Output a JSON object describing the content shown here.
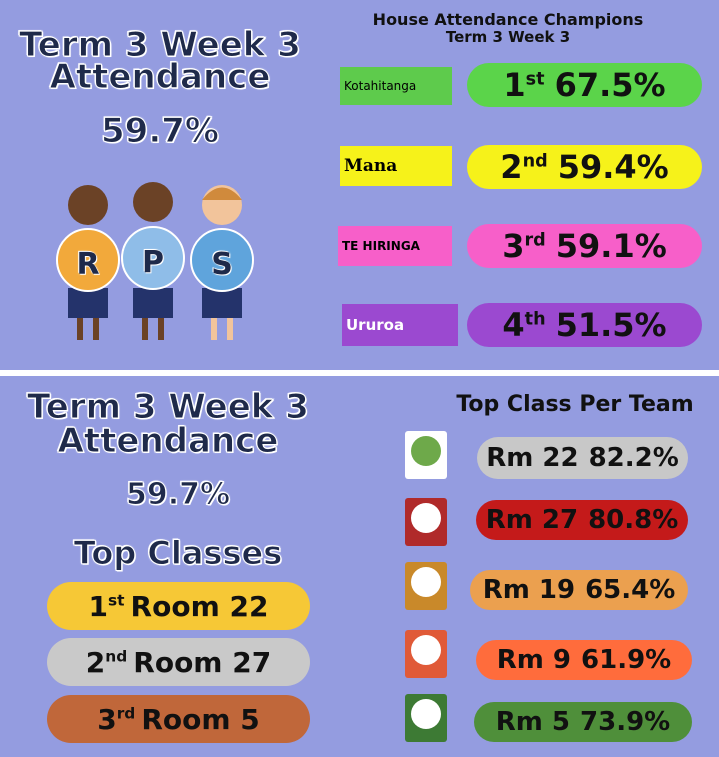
{
  "top": {
    "title_line1": "Term 3 Week 3",
    "title_line2": "Attendance",
    "overall": "59.7%",
    "letters": [
      "R",
      "P",
      "S"
    ],
    "champions_title": "House Attendance Champions",
    "champions_subtitle": "Term 3 Week 3",
    "houses": [
      {
        "name": "Kotahitanga",
        "ordinal": "1",
        "suffix": "st",
        "value": "67.5%"
      },
      {
        "name": "Mana",
        "ordinal": "2",
        "suffix": "nd",
        "value": "59.4%"
      },
      {
        "name": "TE HIRINGA",
        "ordinal": "3",
        "suffix": "rd",
        "value": "59.1%"
      },
      {
        "name": "Ururoa",
        "ordinal": "4",
        "suffix": "th",
        "value": "51.5%"
      }
    ]
  },
  "bottom": {
    "title_line1": "Term 3 Week 3",
    "title_line2": "Attendance",
    "overall": "59.7%",
    "top_classes_title": "Top Classes",
    "top_classes": [
      {
        "ordinal": "1",
        "suffix": "st",
        "room": "Room 22"
      },
      {
        "ordinal": "2",
        "suffix": "nd",
        "room": "Room 27"
      },
      {
        "ordinal": "3",
        "suffix": "rd",
        "room": "Room 5"
      }
    ],
    "team_title": "Top Class Per Team",
    "teams": [
      {
        "room": "Rm 22",
        "value": "82.2%"
      },
      {
        "room": "Rm 27",
        "value": "80.8%"
      },
      {
        "room": "Rm 19",
        "value": "65.4%"
      },
      {
        "room": "Rm 9",
        "value": "61.9%"
      },
      {
        "room": "Rm 5",
        "value": "73.9%"
      }
    ]
  }
}
